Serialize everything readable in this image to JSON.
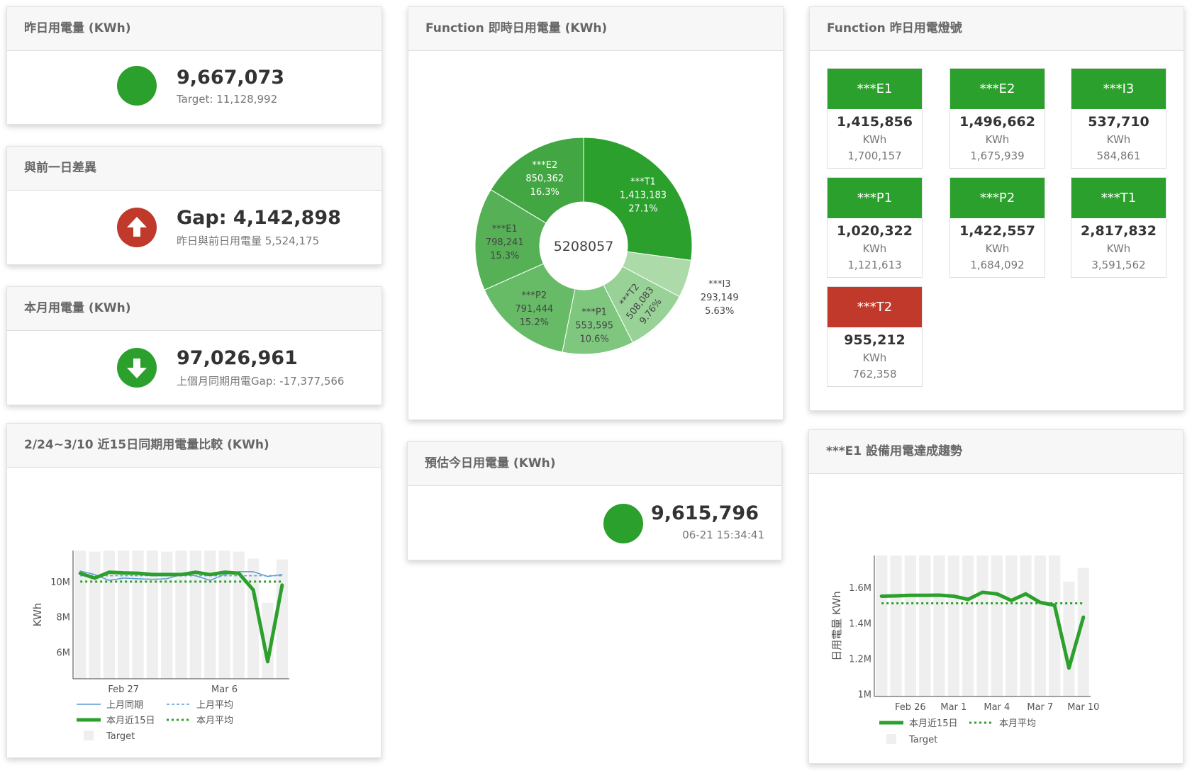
{
  "colors": {
    "green": "#2ca02c",
    "red": "#c0392b",
    "blue": "#5b9bd5",
    "target_gray": "#efefef"
  },
  "yesterday": {
    "title": "昨日用電量 (KWh)",
    "status_icon": "green-circle",
    "value": "9,667,073",
    "target": "Target: 11,128,992"
  },
  "diff": {
    "title": "與前一日差異",
    "status_icon": "arrow-up-circle",
    "value": "Gap: 4,142,898",
    "sub": "昨日與前日用電量 5,524,175"
  },
  "month": {
    "title": "本月用電量 (KWh)",
    "status_icon": "arrow-down-circle",
    "value": "97,026,961",
    "sub": "上個月同期用電Gap: -17,377,566"
  },
  "estimate": {
    "title": "預估今日用電量 (KWh)",
    "status_icon": "green-circle",
    "value": "9,615,796",
    "time": "06-21 15:34:41"
  },
  "signals": {
    "title": "Function 昨日用電燈號",
    "unit": "KWh",
    "tiles": [
      {
        "name": "***E1",
        "value": "1,415,856",
        "target": "1,700,157",
        "status": "green"
      },
      {
        "name": "***E2",
        "value": "1,496,662",
        "target": "1,675,939",
        "status": "green"
      },
      {
        "name": "***I3",
        "value": "537,710",
        "target": "584,861",
        "status": "green"
      },
      {
        "name": "***P1",
        "value": "1,020,322",
        "target": "1,121,613",
        "status": "green"
      },
      {
        "name": "***P2",
        "value": "1,422,557",
        "target": "1,684,092",
        "status": "green"
      },
      {
        "name": "***T1",
        "value": "2,817,832",
        "target": "3,591,562",
        "status": "green"
      },
      {
        "name": "***T2",
        "value": "955,212",
        "target": "762,358",
        "status": "red"
      }
    ]
  },
  "pie_card": {
    "title": "Function 即時日用電量 (KWh)"
  },
  "trend15_card": {
    "title": "2/24~3/10 近15日同期用電量比較 (KWh)"
  },
  "e1_card": {
    "title": "***E1 設備用電達成趨勢"
  },
  "chart_data": [
    {
      "type": "pie",
      "hole": true,
      "center_text": "5208057",
      "slices": [
        {
          "label": "***T1",
          "value": 1413183,
          "value_text": "1,413,183",
          "percent": "27.1%",
          "color": "#2ca02c"
        },
        {
          "label": "***I3",
          "value": 293149,
          "value_text": "293,149",
          "percent": "5.63%",
          "color": "#acdaa9"
        },
        {
          "label": "***T2",
          "value": 508083,
          "value_text": "508,083",
          "percent": "9.76%",
          "color": "#98d297"
        },
        {
          "label": "***P1",
          "value": 553595,
          "value_text": "553,595",
          "percent": "10.6%",
          "color": "#7fc77f"
        },
        {
          "label": "***P2",
          "value": 791444,
          "value_text": "791,444",
          "percent": "15.2%",
          "color": "#67bb67"
        },
        {
          "label": "***E1",
          "value": 798241,
          "value_text": "798,241",
          "percent": "15.3%",
          "color": "#56b156"
        },
        {
          "label": "***E2",
          "value": 850362,
          "value_text": "850,362",
          "percent": "16.3%",
          "color": "#42a743"
        }
      ]
    },
    {
      "type": "bar+line",
      "ylabel": "KWh",
      "ylim": [
        4.5,
        11.76
      ],
      "yunit": "M",
      "yticks": [
        {
          "v": 6,
          "label": "6M"
        },
        {
          "v": 8,
          "label": "8M"
        },
        {
          "v": 10,
          "label": "10M"
        }
      ],
      "categories": [
        "Feb 24",
        "Feb 25",
        "Feb 26",
        "Feb 27",
        "Feb 28",
        "Mar 1",
        "Mar 2",
        "Mar 3",
        "Mar 4",
        "Mar 5",
        "Mar 6",
        "Mar 7",
        "Mar 8",
        "Mar 9",
        "Mar 10"
      ],
      "xticks": [
        {
          "i": 3,
          "label": "Feb 27"
        },
        {
          "i": 10,
          "label": "Mar 6"
        }
      ],
      "target": {
        "name": "Target",
        "values": [
          11.8,
          11.7,
          11.8,
          11.8,
          11.8,
          11.8,
          11.7,
          11.8,
          11.8,
          11.8,
          11.8,
          11.7,
          11.3,
          8.8,
          11.25
        ]
      },
      "series": [
        {
          "name": "上月同期",
          "style": "thin",
          "color": "#5b9bd5",
          "values": [
            10.6,
            10.4,
            10.07,
            10.2,
            10.16,
            10.13,
            10.16,
            10.4,
            10.33,
            10.07,
            10.4,
            10.56,
            10.56,
            10.29,
            10.4
          ]
        },
        {
          "name": "本月近15日",
          "style": "thick",
          "color": "#2ca02c",
          "values": [
            10.47,
            10.2,
            10.53,
            10.49,
            10.47,
            10.4,
            10.4,
            10.4,
            10.53,
            10.4,
            10.53,
            10.47,
            9.53,
            5.47,
            9.8
          ]
        }
      ],
      "averages": [
        {
          "name": "上月平均",
          "color": "#5b9bd5",
          "style": "dash",
          "value": 10.33
        },
        {
          "name": "本月平均",
          "color": "#2ca02c",
          "style": "dot",
          "value": 10.0
        }
      ]
    },
    {
      "type": "bar+line",
      "ylabel": "日用電量 KWh",
      "ylim": [
        0.987,
        1.78
      ],
      "yunit": "M",
      "yticks": [
        {
          "v": 1.0,
          "label": "1M"
        },
        {
          "v": 1.2,
          "label": "1.2M"
        },
        {
          "v": 1.4,
          "label": "1.4M"
        },
        {
          "v": 1.6,
          "label": "1.6M"
        }
      ],
      "categories": [
        "Feb 24",
        "Feb 25",
        "Feb 26",
        "Feb 27",
        "Feb 28",
        "Mar 1",
        "Mar 2",
        "Mar 3",
        "Mar 4",
        "Mar 5",
        "Mar 6",
        "Mar 7",
        "Mar 8",
        "Mar 9",
        "Mar 10"
      ],
      "xticks": [
        {
          "i": 2,
          "label": "Feb 26"
        },
        {
          "i": 5,
          "label": "Mar 1"
        },
        {
          "i": 8,
          "label": "Mar 4"
        },
        {
          "i": 11,
          "label": "Mar 7"
        },
        {
          "i": 14,
          "label": "Mar 10"
        }
      ],
      "target": {
        "name": "Target",
        "values": [
          1.8,
          1.8,
          1.8,
          1.8,
          1.8,
          1.8,
          1.8,
          1.8,
          1.8,
          1.8,
          1.8,
          1.8,
          1.8,
          1.633,
          1.71
        ]
      },
      "series": [
        {
          "name": "本月近15日",
          "style": "thick",
          "color": "#2ca02c",
          "values": [
            1.551,
            1.553,
            1.556,
            1.556,
            1.557,
            1.551,
            1.533,
            1.573,
            1.564,
            1.527,
            1.564,
            1.516,
            1.5,
            1.147,
            1.433
          ]
        }
      ],
      "averages": [
        {
          "name": "本月平均",
          "color": "#2ca02c",
          "style": "dot",
          "value": 1.511
        }
      ]
    }
  ]
}
